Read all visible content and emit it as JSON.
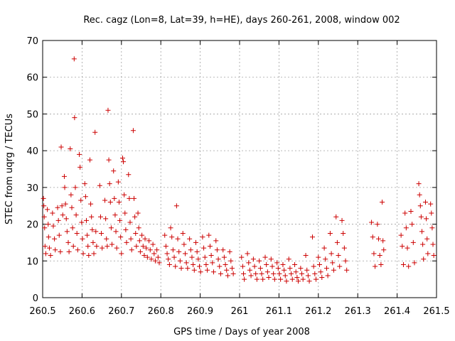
{
  "chart_data": {
    "type": "scatter",
    "title": "Rec. cagz (Lon=8, Lat=39, h=HE), days 260-261, 2008, window 002",
    "xlabel": "GPS time / Days of year 2008",
    "ylabel": "STEC from uqrg / TECUs",
    "xlim": [
      260.5,
      261.5
    ],
    "ylim": [
      0,
      70
    ],
    "x_ticks": [
      260.5,
      260.6,
      260.7,
      260.8,
      260.9,
      261.0,
      261.1,
      261.2,
      261.3,
      261.4,
      261.5
    ],
    "x_tick_labels": [
      "260.5",
      "260.6",
      "260.7",
      "260.8",
      "260.9",
      "261",
      "261.1",
      "261.2",
      "261.3",
      "261.4",
      "261.5"
    ],
    "y_ticks": [
      0,
      10,
      20,
      30,
      40,
      50,
      60,
      70
    ],
    "y_tick_labels": [
      "0",
      "10",
      "20",
      "30",
      "40",
      "50",
      "60",
      "70"
    ],
    "grid": true,
    "marker": "+",
    "marker_color": "#cc0000",
    "series": [
      {
        "points": [
          [
            260.502,
            27.0
          ],
          [
            260.503,
            25.0
          ],
          [
            260.504,
            22.0
          ],
          [
            260.505,
            19.0
          ],
          [
            260.506,
            14.0
          ],
          [
            260.508,
            12.0
          ],
          [
            260.512,
            24.0
          ],
          [
            260.514,
            20.0
          ],
          [
            260.515,
            16.5
          ],
          [
            260.517,
            13.5
          ],
          [
            260.52,
            11.5
          ],
          [
            260.525,
            23.0
          ],
          [
            260.527,
            19.5
          ],
          [
            260.53,
            16.0
          ],
          [
            260.532,
            13.0
          ],
          [
            260.538,
            24.5
          ],
          [
            260.54,
            21.0
          ],
          [
            260.542,
            17.0
          ],
          [
            260.545,
            12.5
          ],
          [
            260.547,
            41.0
          ],
          [
            260.549,
            25.0
          ],
          [
            260.551,
            22.5
          ],
          [
            260.555,
            33.0
          ],
          [
            260.556,
            30.0
          ],
          [
            260.558,
            25.5
          ],
          [
            260.56,
            21.5
          ],
          [
            260.562,
            18.0
          ],
          [
            260.565,
            15.0
          ],
          [
            260.567,
            12.5
          ],
          [
            260.57,
            40.5
          ],
          [
            260.572,
            28.0
          ],
          [
            260.574,
            24.5
          ],
          [
            260.576,
            19.0
          ],
          [
            260.578,
            14.0
          ],
          [
            260.58,
            65.0
          ],
          [
            260.581,
            49.0
          ],
          [
            260.583,
            30.0
          ],
          [
            260.585,
            22.5
          ],
          [
            260.587,
            17.5
          ],
          [
            260.589,
            13.0
          ],
          [
            260.593,
            39.0
          ],
          [
            260.595,
            35.5
          ],
          [
            260.597,
            26.5
          ],
          [
            260.599,
            20.5
          ],
          [
            260.601,
            16.0
          ],
          [
            260.603,
            12.0
          ],
          [
            260.607,
            31.0
          ],
          [
            260.609,
            27.5
          ],
          [
            260.611,
            21.0
          ],
          [
            260.613,
            17.0
          ],
          [
            260.615,
            14.0
          ],
          [
            260.617,
            11.5
          ],
          [
            260.62,
            37.5
          ],
          [
            260.622,
            25.5
          ],
          [
            260.624,
            22.0
          ],
          [
            260.626,
            18.5
          ],
          [
            260.628,
            15.0
          ],
          [
            260.63,
            12.0
          ],
          [
            260.633,
            45.0
          ],
          [
            260.635,
            18.0
          ],
          [
            260.637,
            14.0
          ],
          [
            260.645,
            30.5
          ],
          [
            260.647,
            22.0
          ],
          [
            260.649,
            17.5
          ],
          [
            260.651,
            13.5
          ],
          [
            260.658,
            26.5
          ],
          [
            260.66,
            21.5
          ],
          [
            260.662,
            16.0
          ],
          [
            260.664,
            14.0
          ],
          [
            260.666,
            51.0
          ],
          [
            260.668,
            37.5
          ],
          [
            260.67,
            31.0
          ],
          [
            260.672,
            26.0
          ],
          [
            260.674,
            19.0
          ],
          [
            260.676,
            14.5
          ],
          [
            260.68,
            34.5
          ],
          [
            260.682,
            27.0
          ],
          [
            260.684,
            22.5
          ],
          [
            260.686,
            18.0
          ],
          [
            260.688,
            13.5
          ],
          [
            260.692,
            31.5
          ],
          [
            260.694,
            26.0
          ],
          [
            260.696,
            21.0
          ],
          [
            260.698,
            16.5
          ],
          [
            260.7,
            12.0
          ],
          [
            260.703,
            38.0
          ],
          [
            260.705,
            37.0
          ],
          [
            260.707,
            28.0
          ],
          [
            260.709,
            23.0
          ],
          [
            260.711,
            18.5
          ],
          [
            260.713,
            15.0
          ],
          [
            260.718,
            33.5
          ],
          [
            260.72,
            27.0
          ],
          [
            260.722,
            20.5
          ],
          [
            260.724,
            16.0
          ],
          [
            260.726,
            13.0
          ],
          [
            260.73,
            45.5
          ],
          [
            260.732,
            27.0
          ],
          [
            260.734,
            22.0
          ],
          [
            260.736,
            17.5
          ],
          [
            260.738,
            14.0
          ],
          [
            260.742,
            23.0
          ],
          [
            260.744,
            19.0
          ],
          [
            260.746,
            15.5
          ],
          [
            260.748,
            12.5
          ],
          [
            260.752,
            17.0
          ],
          [
            260.755,
            14.0
          ],
          [
            260.758,
            11.5
          ],
          [
            260.76,
            16.0
          ],
          [
            260.763,
            13.5
          ],
          [
            260.766,
            11.0
          ],
          [
            260.77,
            15.5
          ],
          [
            260.773,
            13.0
          ],
          [
            260.776,
            10.5
          ],
          [
            260.78,
            14.5
          ],
          [
            260.783,
            12.0
          ],
          [
            260.786,
            10.0
          ],
          [
            260.79,
            13.0
          ],
          [
            260.793,
            11.0
          ],
          [
            260.796,
            9.5
          ],
          [
            260.81,
            17.0
          ],
          [
            260.813,
            14.0
          ],
          [
            260.816,
            12.0
          ],
          [
            260.819,
            10.5
          ],
          [
            260.822,
            9.0
          ],
          [
            260.825,
            19.0
          ],
          [
            260.828,
            16.5
          ],
          [
            260.831,
            13.0
          ],
          [
            260.834,
            11.0
          ],
          [
            260.837,
            8.5
          ],
          [
            260.84,
            25.0
          ],
          [
            260.843,
            16.0
          ],
          [
            260.846,
            12.5
          ],
          [
            260.849,
            10.0
          ],
          [
            260.852,
            8.0
          ],
          [
            260.856,
            17.5
          ],
          [
            260.859,
            14.5
          ],
          [
            260.862,
            12.0
          ],
          [
            260.865,
            9.5
          ],
          [
            260.868,
            8.0
          ],
          [
            260.873,
            16.0
          ],
          [
            260.876,
            13.0
          ],
          [
            260.879,
            11.0
          ],
          [
            260.882,
            9.0
          ],
          [
            260.885,
            7.5
          ],
          [
            260.889,
            15.0
          ],
          [
            260.892,
            12.5
          ],
          [
            260.895,
            10.5
          ],
          [
            260.898,
            8.5
          ],
          [
            260.901,
            7.0
          ],
          [
            260.906,
            16.5
          ],
          [
            260.909,
            13.5
          ],
          [
            260.912,
            11.0
          ],
          [
            260.915,
            9.0
          ],
          [
            260.918,
            7.5
          ],
          [
            260.922,
            17.0
          ],
          [
            260.925,
            14.0
          ],
          [
            260.928,
            11.5
          ],
          [
            260.931,
            9.5
          ],
          [
            260.934,
            7.0
          ],
          [
            260.94,
            15.5
          ],
          [
            260.943,
            13.0
          ],
          [
            260.946,
            10.5
          ],
          [
            260.949,
            8.5
          ],
          [
            260.952,
            6.5
          ],
          [
            260.958,
            13.0
          ],
          [
            260.961,
            11.0
          ],
          [
            260.964,
            9.0
          ],
          [
            260.967,
            7.5
          ],
          [
            260.97,
            6.0
          ],
          [
            260.975,
            12.5
          ],
          [
            260.978,
            10.0
          ],
          [
            260.981,
            8.0
          ],
          [
            260.984,
            6.5
          ],
          [
            261.005,
            11.0
          ],
          [
            261.008,
            8.5
          ],
          [
            261.01,
            6.5
          ],
          [
            261.012,
            5.0
          ],
          [
            261.02,
            12.0
          ],
          [
            261.023,
            9.5
          ],
          [
            261.026,
            7.5
          ],
          [
            261.029,
            6.0
          ],
          [
            261.035,
            10.5
          ],
          [
            261.038,
            8.5
          ],
          [
            261.041,
            6.5
          ],
          [
            261.044,
            5.0
          ],
          [
            261.05,
            10.0
          ],
          [
            261.053,
            8.0
          ],
          [
            261.056,
            6.5
          ],
          [
            261.059,
            5.0
          ],
          [
            261.065,
            11.0
          ],
          [
            261.068,
            9.0
          ],
          [
            261.071,
            7.0
          ],
          [
            261.074,
            5.5
          ],
          [
            261.08,
            10.5
          ],
          [
            261.083,
            8.5
          ],
          [
            261.086,
            6.5
          ],
          [
            261.089,
            5.0
          ],
          [
            261.095,
            9.5
          ],
          [
            261.098,
            8.0
          ],
          [
            261.101,
            6.5
          ],
          [
            261.104,
            5.0
          ],
          [
            261.11,
            9.0
          ],
          [
            261.113,
            7.5
          ],
          [
            261.116,
            6.0
          ],
          [
            261.119,
            4.5
          ],
          [
            261.125,
            10.5
          ],
          [
            261.128,
            8.0
          ],
          [
            261.131,
            6.5
          ],
          [
            261.134,
            5.0
          ],
          [
            261.14,
            9.0
          ],
          [
            261.143,
            7.0
          ],
          [
            261.146,
            5.5
          ],
          [
            261.149,
            4.5
          ],
          [
            261.155,
            8.0
          ],
          [
            261.158,
            6.5
          ],
          [
            261.161,
            5.0
          ],
          [
            261.168,
            11.5
          ],
          [
            261.171,
            7.5
          ],
          [
            261.174,
            6.0
          ],
          [
            261.177,
            4.5
          ],
          [
            261.185,
            16.5
          ],
          [
            261.188,
            8.5
          ],
          [
            261.191,
            6.5
          ],
          [
            261.194,
            5.0
          ],
          [
            261.2,
            11.0
          ],
          [
            261.203,
            9.0
          ],
          [
            261.206,
            7.0
          ],
          [
            261.209,
            5.5
          ],
          [
            261.215,
            13.5
          ],
          [
            261.218,
            10.5
          ],
          [
            261.221,
            8.0
          ],
          [
            261.224,
            6.0
          ],
          [
            261.23,
            17.5
          ],
          [
            261.233,
            12.0
          ],
          [
            261.236,
            9.5
          ],
          [
            261.239,
            7.5
          ],
          [
            261.245,
            22.0
          ],
          [
            261.248,
            15.0
          ],
          [
            261.251,
            11.5
          ],
          [
            261.254,
            8.5
          ],
          [
            261.26,
            21.0
          ],
          [
            261.263,
            17.5
          ],
          [
            261.266,
            13.5
          ],
          [
            261.269,
            10.0
          ],
          [
            261.272,
            7.5
          ],
          [
            261.335,
            20.5
          ],
          [
            261.338,
            16.5
          ],
          [
            261.341,
            12.0
          ],
          [
            261.344,
            8.5
          ],
          [
            261.35,
            20.0
          ],
          [
            261.353,
            16.0
          ],
          [
            261.356,
            11.5
          ],
          [
            261.359,
            9.0
          ],
          [
            261.362,
            26.0
          ],
          [
            261.364,
            15.5
          ],
          [
            261.366,
            13.0
          ],
          [
            261.41,
            17.0
          ],
          [
            261.413,
            14.0
          ],
          [
            261.416,
            9.0
          ],
          [
            261.42,
            23.0
          ],
          [
            261.423,
            19.0
          ],
          [
            261.426,
            13.5
          ],
          [
            261.429,
            8.5
          ],
          [
            261.435,
            23.5
          ],
          [
            261.438,
            20.0
          ],
          [
            261.441,
            15.0
          ],
          [
            261.444,
            9.5
          ],
          [
            261.455,
            31.0
          ],
          [
            261.457,
            28.0
          ],
          [
            261.459,
            25.0
          ],
          [
            261.461,
            22.0
          ],
          [
            261.463,
            18.0
          ],
          [
            261.465,
            14.5
          ],
          [
            261.467,
            10.5
          ],
          [
            261.472,
            26.0
          ],
          [
            261.474,
            21.5
          ],
          [
            261.476,
            16.0
          ],
          [
            261.478,
            12.0
          ],
          [
            261.485,
            25.5
          ],
          [
            261.487,
            23.0
          ],
          [
            261.489,
            19.0
          ],
          [
            261.491,
            14.5
          ],
          [
            261.493,
            11.5
          ]
        ]
      }
    ]
  }
}
